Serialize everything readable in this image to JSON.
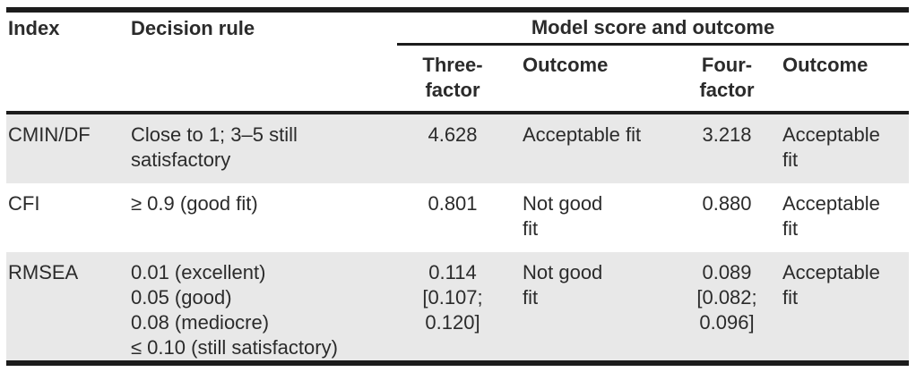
{
  "table": {
    "headers": {
      "index": "Index",
      "decision_rule": "Decision rule",
      "group": "Model score and outcome",
      "three_factor": "Three-\nfactor",
      "outcome_three": "Outcome",
      "four_factor": "Four-\nfactor",
      "outcome_four": "Outcome"
    },
    "rows": [
      {
        "index": "CMIN/DF",
        "rule": "Close to 1; 3–5 still satisfactory",
        "three_score": "4.628",
        "three_outcome": "Acceptable fit",
        "four_score": "3.218",
        "four_outcome": "Acceptable\nfit"
      },
      {
        "index": "CFI",
        "rule": "≥ 0.9 (good fit)",
        "three_score": "0.801",
        "three_outcome": "Not good\nfit",
        "four_score": "0.880",
        "four_outcome": "Acceptable\nfit"
      },
      {
        "index": "RMSEA",
        "rule": "0.01 (excellent)\n0.05 (good)\n0.08 (mediocre)\n≤ 0.10 (still satisfactory)",
        "three_score": "0.114\n[0.107;\n0.120]",
        "three_outcome": "Not good\nfit",
        "four_score": "0.089\n[0.082;\n0.096]",
        "four_outcome": "Acceptable\nfit"
      }
    ],
    "colors": {
      "row_shade": "#e8e8e8",
      "border": "#1c1c1c",
      "text": "#2b2b2b"
    }
  }
}
